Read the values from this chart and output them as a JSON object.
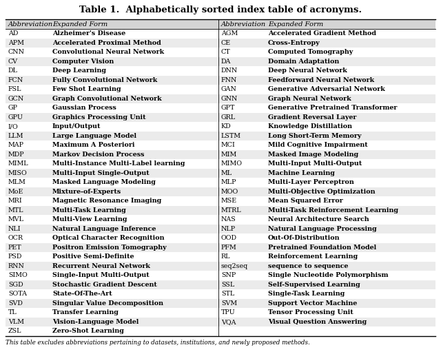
{
  "title": "Table 1.  Alphabetically sorted index table of acronyms.",
  "footer": "This table excludes abbreviations pertaining to datasets, institutions, and newly proposed methods.",
  "col_headers": [
    "Abbreviation",
    "Expanded Form",
    "Abbreviation",
    "Expanded Form"
  ],
  "left_data": [
    [
      "AD",
      "Alzheimer's Disease"
    ],
    [
      "APM",
      "Accelerated Proximal Method"
    ],
    [
      "CNN",
      "Convolutional Neural Network"
    ],
    [
      "CV",
      "Computer Vision"
    ],
    [
      "DL",
      "Deep Learning"
    ],
    [
      "FCN",
      "Fully Convolutional Network"
    ],
    [
      "FSL",
      "Few Shot Learning"
    ],
    [
      "GCN",
      "Graph Convolutional Network"
    ],
    [
      "GP",
      "Gaussian Process"
    ],
    [
      "GPU",
      "Graphics Processing Unit"
    ],
    [
      "I/O",
      "Input/Output"
    ],
    [
      "LLM",
      "Large Language Model"
    ],
    [
      "MAP",
      "Maximum A Posteriori"
    ],
    [
      "MDP",
      "Markov Decision Process"
    ],
    [
      "MIML",
      "Multi-Instance Multi-Label learning"
    ],
    [
      "MISO",
      "Multi-Input Single-Output"
    ],
    [
      "MLM",
      "Masked Language Modeling"
    ],
    [
      "MoE",
      "Mixture-of-Experts"
    ],
    [
      "MRI",
      "Magnetic Resonance Imaging"
    ],
    [
      "MTL",
      "Multi-Task Learning"
    ],
    [
      "MVL",
      "Multi-View Learning"
    ],
    [
      "NLI",
      "Natural Language Inference"
    ],
    [
      "OCR",
      "Optical Character Recognition"
    ],
    [
      "PET",
      "Positron Emission Tomography"
    ],
    [
      "PSD",
      "Positive Semi-Definite"
    ],
    [
      "RNN",
      "Recurrent Neural Network"
    ],
    [
      "SIMO",
      "Single-Input Multi-Output"
    ],
    [
      "SGD",
      "Stochastic Gradient Descent"
    ],
    [
      "SOTA",
      "State-Of-The-Art"
    ],
    [
      "SVD",
      "Singular Value Decomposition"
    ],
    [
      "TL",
      "Transfer Learning"
    ],
    [
      "VLM",
      "Vision-Language Model"
    ],
    [
      "ZSL",
      "Zero-Shot Learning"
    ]
  ],
  "right_data": [
    [
      "AGM",
      "Accelerated Gradient Method"
    ],
    [
      "CE",
      "Cross-Entropy"
    ],
    [
      "CT",
      "Computed Tomography"
    ],
    [
      "DA",
      "Domain Adaptation"
    ],
    [
      "DNN",
      "Deep Neural Network"
    ],
    [
      "FNN",
      "Feedforward Neural Network"
    ],
    [
      "GAN",
      "Generative Adversarial Network"
    ],
    [
      "GNN",
      "Graph Neural Network"
    ],
    [
      "GPT",
      "Generative Pretrained Transformer"
    ],
    [
      "GRL",
      "Gradient Reversal Layer"
    ],
    [
      "KD",
      "Knowledge Distillation"
    ],
    [
      "LSTM",
      "Long Short-Term Memory"
    ],
    [
      "MCI",
      "Mild Cognitive Impairment"
    ],
    [
      "MIM",
      "Masked Image Modeling"
    ],
    [
      "MIMO",
      "Multi-Input Multi-Output"
    ],
    [
      "ML",
      "Machine Learning"
    ],
    [
      "MLP",
      "Multi-Layer Perceptron"
    ],
    [
      "MOO",
      "Multi-Objective Optimization"
    ],
    [
      "MSE",
      "Mean Squared Error"
    ],
    [
      "MTRL",
      "Multi-Task Reinforcement Learning"
    ],
    [
      "NAS",
      "Neural Architecture Search"
    ],
    [
      "NLP",
      "Natural Language Processing"
    ],
    [
      "OOD",
      "Out-Of-Distribution"
    ],
    [
      "PFM",
      "Pretrained Foundation Model"
    ],
    [
      "RL",
      "Reinforcement Learning"
    ],
    [
      "seq2seq",
      "sequence to sequence"
    ],
    [
      "SNP",
      "Single Nucleotide Polymorphism"
    ],
    [
      "SSL",
      "Self-Supervised Learning"
    ],
    [
      "STL",
      "Single-Task Learning"
    ],
    [
      "SVM",
      "Support Vector Machine"
    ],
    [
      "TPU",
      "Tensor Processing Unit"
    ],
    [
      "VQA",
      "Visual Question Answering"
    ],
    [
      "",
      ""
    ]
  ],
  "bg_color": "#ffffff",
  "header_bg": "#d4d4d4",
  "row_alt_bg": "#ebebeb",
  "row_normal_bg": "#ffffff",
  "border_color": "#000000",
  "text_color": "#000000",
  "font_size": 6.8,
  "header_font_size": 7.2,
  "title_fontsize": 9.5
}
